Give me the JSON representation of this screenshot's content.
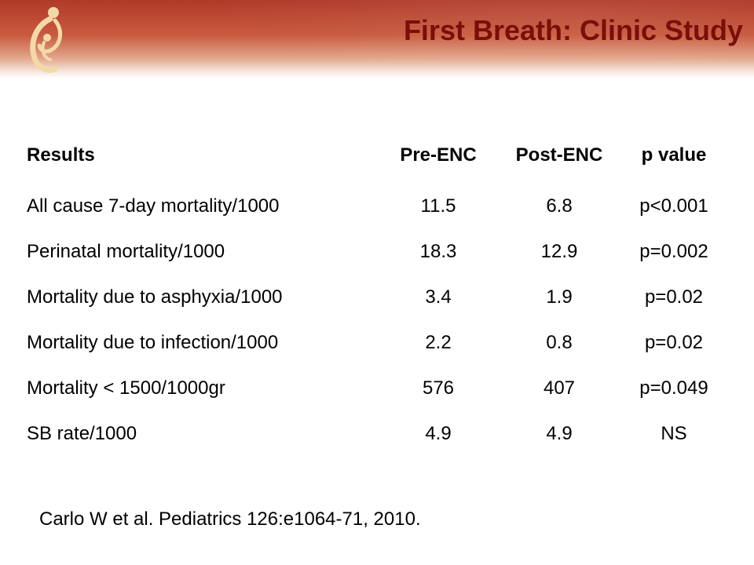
{
  "slide": {
    "title": "First Breath: Clinic Study",
    "logo_icon": "mother-and-child-logo-icon",
    "colors": {
      "header": "#b03a2a",
      "title": "#7a0e0a"
    }
  },
  "table": {
    "headers": {
      "label": "Results",
      "pre": "Pre-ENC",
      "post": "Post-ENC",
      "p": "p value"
    },
    "rows": [
      {
        "label": "All cause 7-day mortality/1000",
        "pre": "11.5",
        "post": "6.8",
        "p": "p<0.001"
      },
      {
        "label": "Perinatal mortality/1000",
        "pre": "18.3",
        "post": "12.9",
        "p": "p=0.002"
      },
      {
        "label": "Mortality due to asphyxia/1000",
        "pre": "3.4",
        "post": "1.9",
        "p": "p=0.02"
      },
      {
        "label": "Mortality due to infection/1000",
        "pre": "2.2",
        "post": "0.8",
        "p": "p=0.02"
      },
      {
        "label": "Mortality < 1500/1000gr",
        "pre": "576",
        "post": "407",
        "p": "p=0.049"
      },
      {
        "label": "SB rate/1000",
        "pre": "4.9",
        "post": "4.9",
        "p": "NS"
      }
    ]
  },
  "citation": "Carlo W et al.  Pediatrics 126:e1064-71, 2010."
}
